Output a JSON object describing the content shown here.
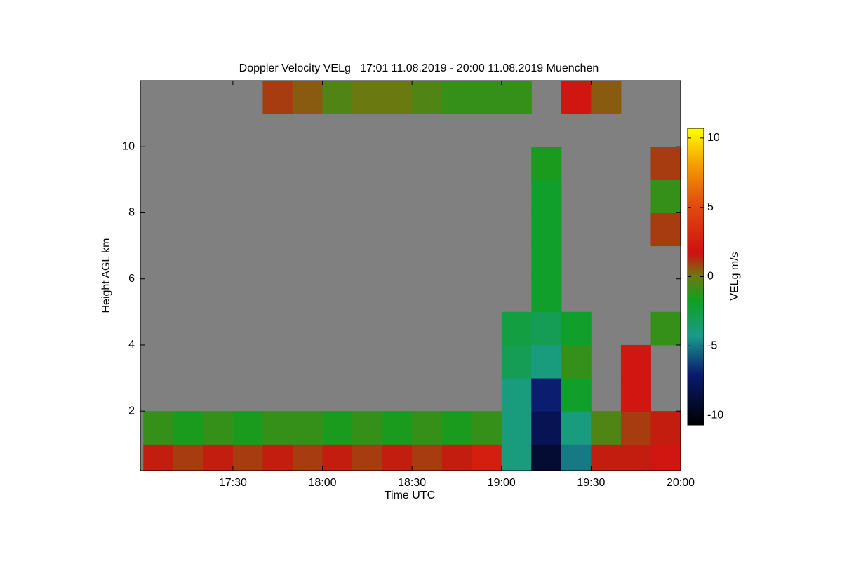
{
  "chart_data": {
    "type": "heatmap",
    "title": "Doppler Velocity VELg   17:01 11.08.2019 - 20:00 11.08.2019 Muenchen",
    "x_label": "Time UTC",
    "y_label": "Height AGL km",
    "colorbar_label": "VELg m/s",
    "xlim": [
      1019,
      1200
    ],
    "xticks": [
      {
        "value": 1050,
        "label": "17:30"
      },
      {
        "value": 1080,
        "label": "18:00"
      },
      {
        "value": 1110,
        "label": "18:30"
      },
      {
        "value": 1140,
        "label": "19:00"
      },
      {
        "value": 1170,
        "label": "19:30"
      },
      {
        "value": 1200,
        "label": "20:00"
      }
    ],
    "ylim": [
      0.2,
      12.0
    ],
    "yticks": [
      2,
      4,
      6,
      8,
      10
    ],
    "zlim": [
      -10.7,
      10.7
    ],
    "zticks": [
      10,
      5,
      0,
      -5,
      -10
    ],
    "x_edges": [
      1020,
      1030,
      1040,
      1050,
      1060,
      1070,
      1080,
      1090,
      1100,
      1110,
      1120,
      1130,
      1140,
      1150,
      1160,
      1170,
      1180,
      1190,
      1200
    ],
    "y_edges": [
      0.2,
      1,
      2,
      3,
      4,
      5,
      6,
      7,
      8,
      9,
      10,
      11,
      12
    ],
    "z": [
      [
        1.5,
        1,
        1.5,
        1,
        1.5,
        1,
        1.5,
        1,
        1.5,
        1,
        1.5,
        2.5,
        -4,
        -9,
        -5,
        1.5,
        1.5,
        2
      ],
      [
        -1,
        -1.5,
        -1,
        -1.5,
        -1,
        -1,
        -1.5,
        -1,
        -1.5,
        -1,
        -1.5,
        -1,
        -4,
        -8,
        -4,
        -0.5,
        1,
        1.5
      ],
      [
        null,
        null,
        null,
        null,
        null,
        null,
        null,
        null,
        null,
        null,
        null,
        null,
        -4,
        -7,
        -2,
        null,
        2,
        null
      ],
      [
        null,
        null,
        null,
        null,
        null,
        null,
        null,
        null,
        null,
        null,
        null,
        null,
        -3,
        -4,
        -1,
        null,
        2,
        null
      ],
      [
        null,
        null,
        null,
        null,
        null,
        null,
        null,
        null,
        null,
        null,
        null,
        null,
        -2.5,
        -3,
        -2,
        null,
        null,
        -1
      ],
      [
        null,
        null,
        null,
        null,
        null,
        null,
        null,
        null,
        null,
        null,
        null,
        null,
        null,
        -2,
        null,
        null,
        null,
        null
      ],
      [
        null,
        null,
        null,
        null,
        null,
        null,
        null,
        null,
        null,
        null,
        null,
        null,
        null,
        -2,
        null,
        null,
        null,
        null
      ],
      [
        null,
        null,
        null,
        null,
        null,
        null,
        null,
        null,
        null,
        null,
        null,
        null,
        null,
        -2,
        null,
        null,
        null,
        1
      ],
      [
        null,
        null,
        null,
        null,
        null,
        null,
        null,
        null,
        null,
        null,
        null,
        null,
        null,
        -2,
        null,
        null,
        null,
        -1
      ],
      [
        null,
        null,
        null,
        null,
        null,
        null,
        null,
        null,
        null,
        null,
        null,
        null,
        null,
        -1.5,
        null,
        null,
        null,
        1
      ],
      [
        null,
        null,
        null,
        null,
        null,
        null,
        null,
        null,
        null,
        null,
        null,
        null,
        null,
        null,
        null,
        null,
        null,
        null
      ],
      [
        null,
        null,
        null,
        null,
        1,
        0.5,
        -0.5,
        0,
        0,
        -0.5,
        -1,
        -1,
        -1,
        null,
        2,
        0.5,
        null,
        null
      ]
    ]
  }
}
